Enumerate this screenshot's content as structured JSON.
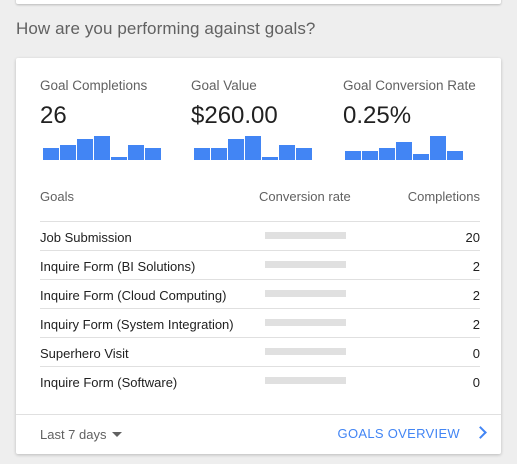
{
  "section_title": "How are you performing against goals?",
  "colors": {
    "accent": "#4285f4",
    "track": "#e0e0e0"
  },
  "metrics": [
    {
      "label": "Goal Completions",
      "value": "26",
      "sparkline": [
        4,
        5,
        7,
        8,
        1,
        5,
        4
      ]
    },
    {
      "label": "Goal Value",
      "value": "$260.00",
      "sparkline": [
        4,
        4,
        7,
        8,
        1,
        5,
        4
      ]
    },
    {
      "label": "Goal Conversion Rate",
      "value": "0.25%",
      "sparkline": [
        3,
        3,
        4,
        6,
        2,
        8,
        3
      ]
    }
  ],
  "table": {
    "headers": {
      "goals": "Goals",
      "rate": "Conversion rate",
      "completions": "Completions"
    },
    "rows": [
      {
        "name": "Job Submission",
        "rate_fraction": 0,
        "completions": "20"
      },
      {
        "name": "Inquire Form (BI Solutions)",
        "rate_fraction": 0,
        "completions": "2"
      },
      {
        "name": "Inquire Form (Cloud Computing)",
        "rate_fraction": 0,
        "completions": "2"
      },
      {
        "name": "Inquiry Form (System Integration)",
        "rate_fraction": 0,
        "completions": "2"
      },
      {
        "name": "Superhero Visit",
        "rate_fraction": 0,
        "completions": "0"
      },
      {
        "name": "Inquire Form (Software)",
        "rate_fraction": 0,
        "completions": "0"
      }
    ]
  },
  "footer": {
    "range_label": "Last 7 days",
    "range_icon": "caret-down-icon",
    "overview_label": "GOALS OVERVIEW",
    "overview_icon": "chevron-right-icon"
  }
}
